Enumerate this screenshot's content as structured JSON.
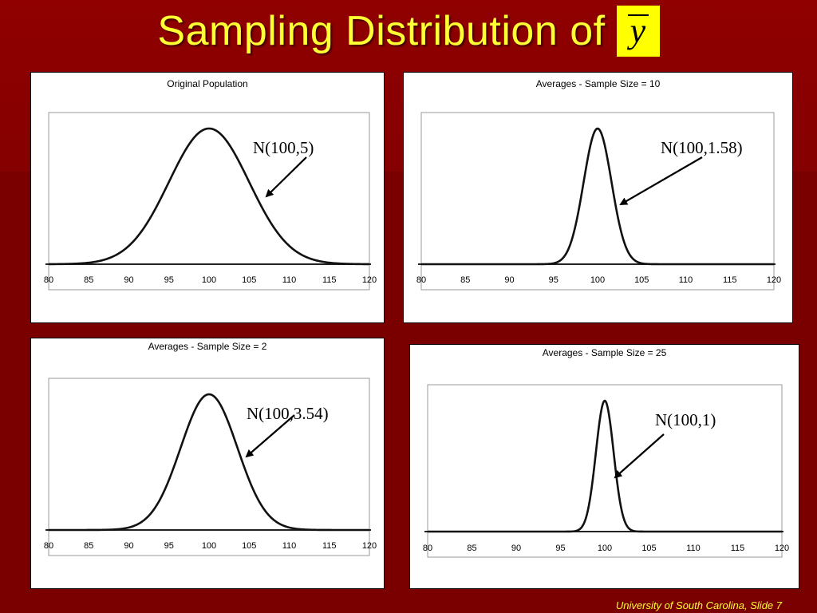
{
  "slide": {
    "title": "Sampling Distribution of",
    "title_symbol": "y",
    "footer": "University of South Carolina, Slide 7",
    "colors": {
      "background": "#7a0000",
      "title": "#ffff33",
      "symbol_box": "#ffff00"
    }
  },
  "chart_data": [
    {
      "type": "line",
      "title": "Original Population",
      "xlabel": "",
      "ylabel": "",
      "xlim": [
        80,
        120
      ],
      "x_ticks": [
        "80",
        "85",
        "90",
        "95",
        "100",
        "105",
        "110",
        "115",
        "120"
      ],
      "series": [
        {
          "distribution": "normal",
          "mean": 100,
          "sd": 5
        }
      ],
      "annotation": "N(100,5)",
      "grid": false
    },
    {
      "type": "line",
      "title": "Averages - Sample Size = 10",
      "xlabel": "",
      "ylabel": "",
      "xlim": [
        80,
        120
      ],
      "x_ticks": [
        "80",
        "85",
        "90",
        "95",
        "100",
        "105",
        "110",
        "115",
        "120"
      ],
      "series": [
        {
          "distribution": "normal",
          "mean": 100,
          "sd": 1.58
        }
      ],
      "annotation": "N(100,1.58)",
      "grid": false
    },
    {
      "type": "line",
      "title": "Averages - Sample Size = 2",
      "xlabel": "",
      "ylabel": "",
      "xlim": [
        80,
        120
      ],
      "x_ticks": [
        "80",
        "85",
        "90",
        "95",
        "100",
        "105",
        "110",
        "115",
        "120"
      ],
      "series": [
        {
          "distribution": "normal",
          "mean": 100,
          "sd": 3.54
        }
      ],
      "annotation": "N(100,3.54)",
      "grid": false
    },
    {
      "type": "line",
      "title": "Averages - Sample Size = 25",
      "xlabel": "",
      "ylabel": "",
      "xlim": [
        80,
        120
      ],
      "x_ticks": [
        "80",
        "85",
        "90",
        "95",
        "100",
        "105",
        "110",
        "115",
        "120"
      ],
      "series": [
        {
          "distribution": "normal",
          "mean": 100,
          "sd": 1
        }
      ],
      "annotation": "N(100,1)",
      "grid": false
    }
  ]
}
